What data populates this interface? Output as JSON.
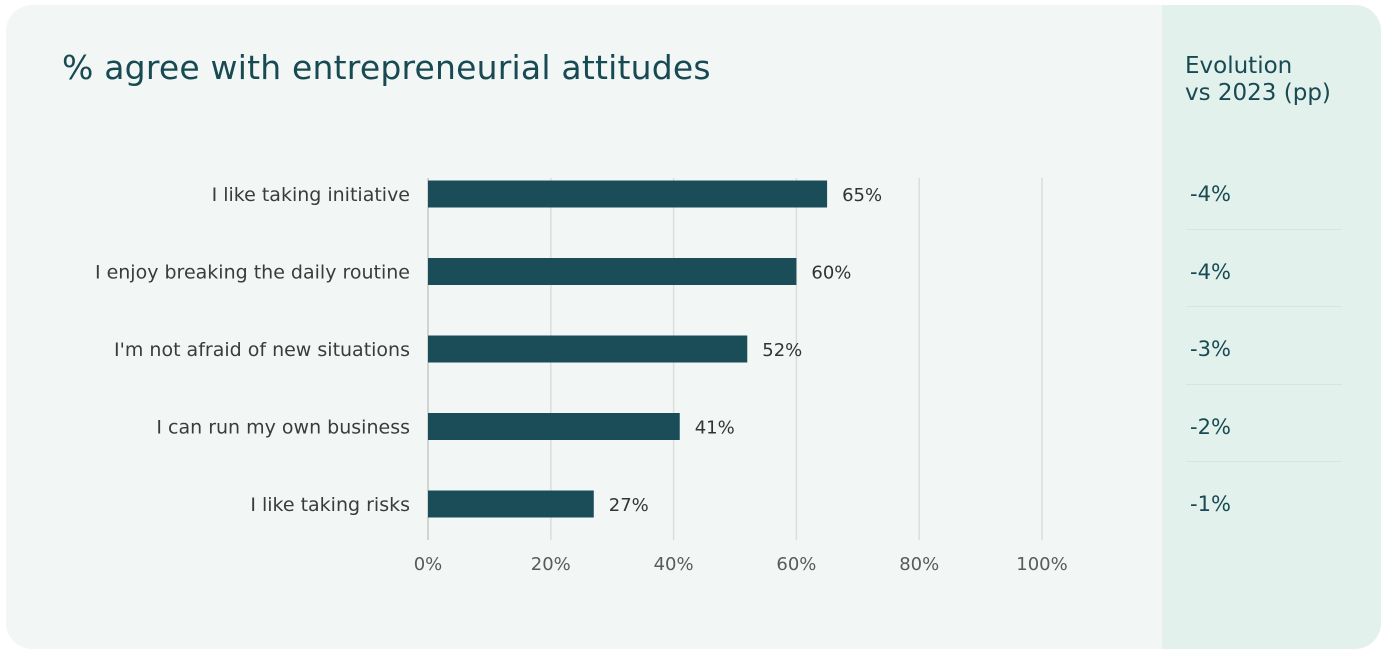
{
  "header": {
    "title": "% agree with entrepreneurial attitudes",
    "evolution_title_line1": "Evolution",
    "evolution_title_line2": "vs 2023 (pp)"
  },
  "chart_data": {
    "type": "bar",
    "orientation": "horizontal",
    "title": "% agree with entrepreneurial attitudes",
    "categories": [
      "I like taking initiative",
      "I enjoy breaking the daily routine",
      "I'm not afraid of new situations",
      "I can run my own business",
      "I like taking risks"
    ],
    "values": [
      65,
      60,
      52,
      41,
      27
    ],
    "value_labels": [
      "65%",
      "60%",
      "52%",
      "41%",
      "27%"
    ],
    "xlim": [
      0,
      100
    ],
    "xticks": [
      0,
      20,
      40,
      60,
      80,
      100
    ],
    "xtick_labels": [
      "0%",
      "20%",
      "40%",
      "60%",
      "80%",
      "100%"
    ],
    "grid": true,
    "bar_color": "#1b4d59",
    "evolution": [
      "-4%",
      "-4%",
      "-3%",
      "-2%",
      "-1%"
    ]
  }
}
